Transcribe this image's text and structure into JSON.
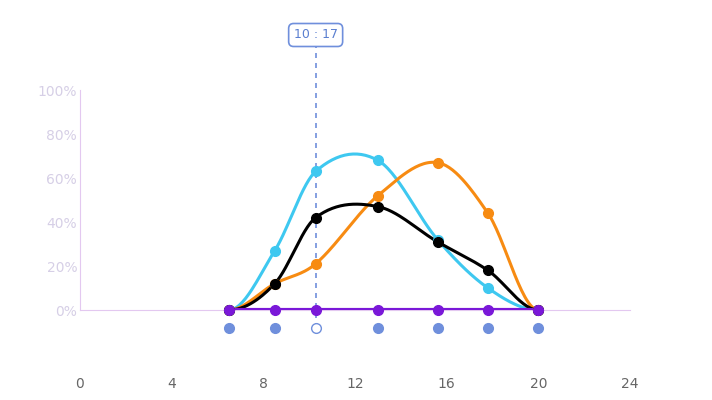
{
  "chart_data": {
    "type": "line",
    "x": [
      6.5,
      8.5,
      10.283,
      13,
      15.6,
      17.8,
      20
    ],
    "series": [
      {
        "color": "#3ec8f0",
        "values": [
          0,
          27,
          63,
          68,
          32,
          10,
          0
        ],
        "marker": "o",
        "line_style": "solid"
      },
      {
        "color": "#f78b12",
        "values": [
          0,
          12,
          21,
          52,
          67,
          44,
          0
        ],
        "marker": "o",
        "line_style": "solid"
      },
      {
        "color": "#000000",
        "values": [
          0,
          12,
          42,
          47,
          31,
          18,
          0
        ],
        "marker": "o",
        "line_style": "solid"
      },
      {
        "color": "#7a18d8",
        "values": [
          0,
          0,
          0,
          0,
          0,
          0,
          0
        ],
        "marker": "o",
        "line_style": "solid"
      }
    ],
    "xlim": [
      0,
      24
    ],
    "xticks": [
      0,
      4,
      8,
      12,
      16,
      20,
      24
    ],
    "ylim": [
      0,
      100
    ],
    "yticks": [
      {
        "value": 0,
        "label": "0%"
      },
      {
        "value": 20,
        "label": "20%"
      },
      {
        "value": 40,
        "label": "40%"
      },
      {
        "value": 60,
        "label": "60%"
      },
      {
        "value": 80,
        "label": "80%"
      },
      {
        "value": 100,
        "label": "100%"
      }
    ],
    "grid": false,
    "annotations": [
      {
        "x": 10.283,
        "text": "10 : 17"
      }
    ]
  }
}
